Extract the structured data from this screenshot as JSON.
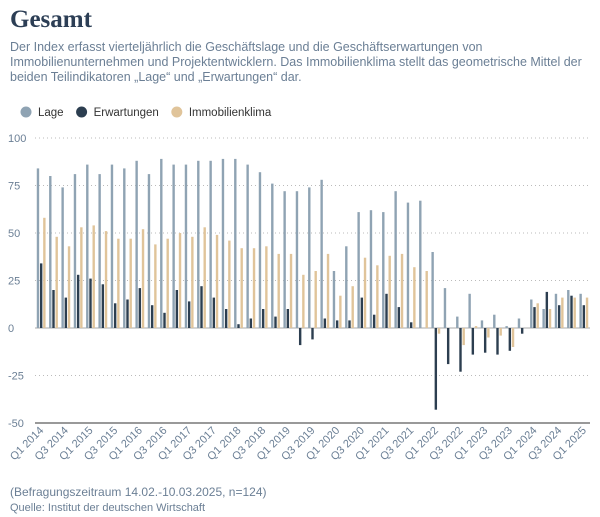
{
  "chart_data": {
    "type": "bar",
    "title": "Gesamt",
    "subtitle": [
      "Der Index erfasst vierteljährlich die Geschäftslage und die Geschäftserwartungen von",
      "Immobilienunternehmen und Projektentwicklern. Das Immobilienklima stellt das geometrische Mittel der",
      "beiden Teilindikatoren „Lage“ und „Erwartungen“ dar."
    ],
    "notes": [
      "(Befragungszeitraum 14.02.-10.03.2025, n=124)",
      "Quelle: Institut der deutschen Wirtschaft"
    ],
    "categories": [
      "Q1 2014",
      null,
      "Q3 2014",
      null,
      "Q1 2015",
      null,
      "Q3 2015",
      null,
      "Q1 2016",
      null,
      "Q3 2016",
      null,
      "Q1 2017",
      null,
      "Q3 2017",
      null,
      "Q1 2018",
      null,
      "Q3 2018",
      null,
      "Q1 2019",
      null,
      "Q3 2019",
      null,
      "Q1 2020",
      null,
      "Q3 2020",
      null,
      "Q1 2021",
      null,
      "Q3 2021",
      null,
      "Q1 2022",
      null,
      "Q3 2022",
      null,
      "Q1 2023",
      null,
      "Q3 2023",
      null,
      "Q1 2024",
      null,
      "Q3 2024",
      null,
      "Q1 2025"
    ],
    "series": [
      {
        "name": "Lage",
        "color": "#8fa3b3",
        "values": [
          84,
          80,
          74,
          81,
          86,
          81,
          86,
          84,
          88,
          81,
          89,
          86,
          86,
          88,
          88,
          89,
          89,
          86,
          82,
          76,
          72,
          72,
          74,
          78,
          30,
          43,
          61,
          62,
          61,
          72,
          66,
          67,
          40,
          21,
          6,
          18,
          4,
          7,
          1,
          5,
          15,
          10,
          18,
          20,
          18
        ]
      },
      {
        "name": "Erwartungen",
        "color": "#2c3e50",
        "values": [
          34,
          20,
          16,
          28,
          26,
          23,
          13,
          15,
          21,
          12,
          8,
          20,
          14,
          22,
          16,
          10,
          2,
          5,
          10,
          6,
          10,
          -9,
          -6,
          5,
          4,
          4,
          16,
          7,
          18,
          11,
          3,
          0,
          -43,
          -19,
          -23,
          -14,
          -13,
          -14,
          -12,
          -3,
          11,
          19,
          12,
          17,
          12
        ]
      },
      {
        "name": "Immobilienklima",
        "color": "#e0c49a",
        "values": [
          58,
          48,
          43,
          53,
          54,
          51,
          47,
          47,
          52,
          44,
          47,
          50,
          48,
          53,
          49,
          46,
          42,
          42,
          43,
          39,
          39,
          28,
          30,
          39,
          17,
          22,
          37,
          33,
          38,
          39,
          32,
          30,
          -3,
          0,
          -9,
          1,
          -5,
          -4,
          -10,
          0,
          13,
          10,
          16,
          16,
          16
        ]
      }
    ],
    "ylim": [
      -50,
      100
    ],
    "yticks": [
      -50,
      -25,
      0,
      25,
      50,
      75,
      100
    ],
    "grid": true,
    "legend": "top"
  }
}
